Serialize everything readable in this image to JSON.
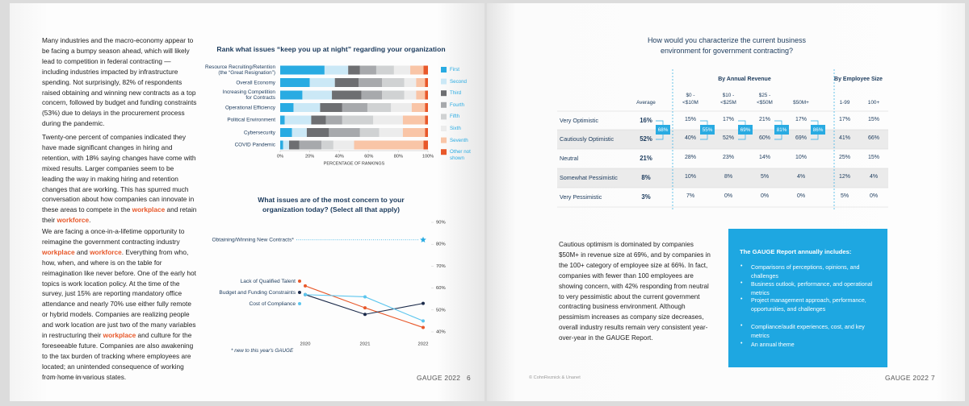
{
  "left_page": {
    "paragraphs": [
      [
        "Many industries and the macro-economy appear to be facing a bumpy season ahead, which will likely lead to competition in federal contracting — including industries impacted by infrastructure spending. Not surprisingly, 82% of respondents raised obtaining and winning new contracts as a top concern, followed by budget and funding constraints (53%) due to delays in the procurement process during the pandemic."
      ],
      [
        "Twenty-one percent of companies indicated they have made significant changes in hiring and retention, with 18% saying changes have come with mixed results. Larger companies seem to be leading the way in making hiring and retention changes that are working. This has spurred much conversation about how companies can innovate in these areas to compete in the ",
        {
          "highlight": "workplace"
        },
        " and retain their ",
        {
          "highlight": "workforce"
        },
        "."
      ],
      [
        "We are facing a once-in-a-lifetime opportunity to reimagine the government contracting industry ",
        {
          "highlight": "workplace"
        },
        " and ",
        {
          "highlight": "workforce"
        },
        ". Everything from who, how, when, and where is on the table for reimagination like never before. One of the early hot topics is work location policy. At the time of the survey, just 15% are reporting mandatory office attendance and nearly 70% use either fully remote or hybrid models. Companies are realizing people and work location are just two of the many variables in restructuring their ",
        {
          "highlight": "workplace"
        },
        " and culture for the foreseeable future. Companies are also awakening to the tax burden of tracking where employees are located; an unintended consequence of working from home in various states."
      ]
    ],
    "chart_rank": {
      "type": "bar",
      "orientation": "horizontal",
      "stacked": true,
      "title": "Rank what issues “keep you up at night” regarding your organization",
      "categories": [
        "Resource Recruiting/Retention\n(the “Great Resignation”)",
        "Overall Economy",
        "Increasing Competition\nfor Contracts",
        "Operational Efficiency",
        "Political Environment",
        "Cybersecurity",
        "COVID Pandemic"
      ],
      "series": [
        {
          "name": "First",
          "color": "#29abe2",
          "values": [
            30,
            20,
            15,
            9,
            3,
            8,
            2
          ]
        },
        {
          "name": "Second",
          "color": "#cbe8f6",
          "values": [
            16,
            17,
            20,
            18,
            18,
            10,
            4
          ]
        },
        {
          "name": "Third",
          "color": "#6d6e71",
          "values": [
            8,
            16,
            20,
            15,
            10,
            15,
            7
          ]
        },
        {
          "name": "Fourth",
          "color": "#a7a9ac",
          "values": [
            11,
            16,
            14,
            17,
            11,
            21,
            15
          ]
        },
        {
          "name": "Fifth",
          "color": "#d0d2d3",
          "values": [
            12,
            15,
            15,
            16,
            21,
            13,
            8
          ]
        },
        {
          "name": "Sixth",
          "color": "#ececec",
          "values": [
            11,
            8,
            8,
            14,
            20,
            16,
            14
          ]
        },
        {
          "name": "Seventh",
          "color": "#f9c5a7",
          "values": [
            9,
            6,
            6,
            9,
            15,
            15,
            47
          ]
        },
        {
          "name": "Other not shown",
          "color": "#e8582a",
          "values": [
            3,
            2,
            2,
            2,
            2,
            2,
            3
          ]
        }
      ],
      "xlim": [
        0,
        100
      ],
      "xticks": [
        {
          "value": 0,
          "label": "0%"
        },
        {
          "value": 20,
          "label": "20%"
        },
        {
          "value": 40,
          "label": "40%"
        },
        {
          "value": 60,
          "label": "60%"
        },
        {
          "value": 80,
          "label": "80%"
        },
        {
          "value": 100,
          "label": "100%"
        }
      ],
      "xlabel": "PERCENTAGE OF RANKINGS"
    },
    "chart_trend": {
      "type": "line",
      "title": "What issues are of the most concern to your organization today? (Select all that apply)",
      "categories": [
        "2020",
        "2021",
        "2022"
      ],
      "series": [
        {
          "name": "Obtaining/Winning New Contracts*",
          "color": "#29abe2",
          "marker": "star",
          "values": [
            null,
            null,
            82
          ]
        },
        {
          "name": "Lack of Qualified Talent",
          "color": "#e8582a",
          "values": [
            61,
            51,
            42
          ]
        },
        {
          "name": "Budget and Funding Constraints",
          "color": "#1b2a4a",
          "values": [
            57,
            48,
            53
          ]
        },
        {
          "name": "Cost of Compliance",
          "color": "#5bc5ee",
          "values": [
            57,
            56,
            45
          ]
        }
      ],
      "ylim": [
        40,
        90
      ],
      "yticks": [
        {
          "value": 40,
          "label": "40%"
        },
        {
          "value": 50,
          "label": "50%"
        },
        {
          "value": 60,
          "label": "60%"
        },
        {
          "value": 70,
          "label": "70%"
        },
        {
          "value": 80,
          "label": "80%"
        },
        {
          "value": 90,
          "label": "90%"
        }
      ]
    },
    "footnote": "* new to this year's GAUGE",
    "footer": {
      "copyright": "© CohnReznick & Unanet",
      "brand": "GAUGE 2022",
      "page_number": "6"
    }
  },
  "right_page": {
    "title": "How would you characterize the current business environment for government contracting?",
    "table": {
      "group_headers": [
        "By Annual Revenue",
        "By Employee Size"
      ],
      "columns": [
        "Average",
        "$0 -\n<$10M",
        "$10 -\n<$25M",
        "$25 -\n<$50M",
        "$50M+",
        "1-99",
        "100+"
      ],
      "rows": [
        {
          "label": "Very Optimistic",
          "cells": [
            "16%",
            "15%",
            "17%",
            "21%",
            "17%",
            "17%",
            "15%"
          ]
        },
        {
          "label": "Cautiously Optimistic",
          "cells": [
            "52%",
            "40%",
            "52%",
            "60%",
            "69%",
            "41%",
            "66%"
          ]
        },
        {
          "label": "Neutral",
          "cells": [
            "21%",
            "28%",
            "23%",
            "14%",
            "10%",
            "25%",
            "15%"
          ]
        },
        {
          "label": "Somewhat Pessimistic",
          "cells": [
            "8%",
            "10%",
            "8%",
            "5%",
            "4%",
            "12%",
            "4%"
          ]
        },
        {
          "label": "Very Pessimistic",
          "cells": [
            "3%",
            "7%",
            "0%",
            "0%",
            "0%",
            "5%",
            "0%"
          ]
        }
      ],
      "combined": [
        "68%",
        "55%",
        "69%",
        "81%",
        "86%"
      ]
    },
    "paragraph": "Cautious optimism is dominated by companies $50M+ in revenue size at 69%, and by companies in the 100+ category of employee size at 66%. In fact, companies with fewer than 100 employees are showing concern, with 42% responding from neutral to very pessimistic about the current government contracting business environment. Although pessimism increases as company size decreases, overall industry results remain very consistent year-over-year in the GAUGE Report.",
    "box": {
      "title": "The GAUGE Report annually includes:",
      "items": [
        "Comparisons of perceptions, opinions, and challenges",
        "Business outlook, performance, and operational metrics",
        "Project management approach, performance, opportunities, and challenges",
        "Compliance/audit experiences, cost, and key metrics",
        "An annual theme"
      ]
    },
    "footer": {
      "copyright": "© CohnReznick & Unanet",
      "brand": "GAUGE 2022",
      "page_number": "7"
    }
  }
}
